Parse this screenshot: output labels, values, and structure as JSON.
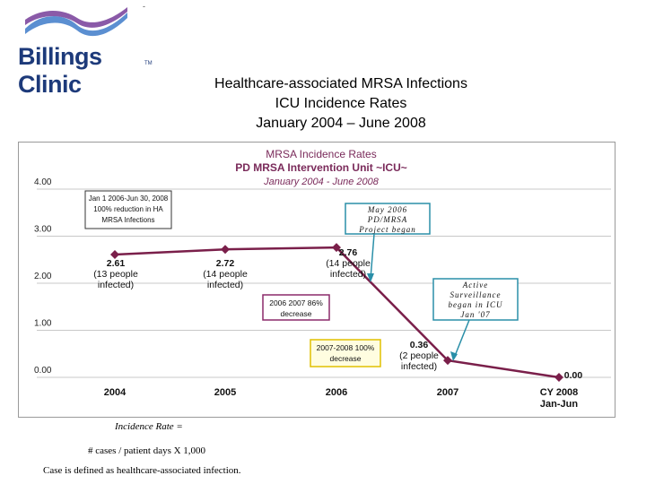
{
  "header": {
    "logo_text": "Billings Clinic",
    "logo_tm": "TM",
    "dash": "-"
  },
  "title": {
    "line1": "Healthcare-associated MRSA Infections",
    "line2": "ICU Incidence Rates",
    "line3": "January 2004 – June 2008"
  },
  "chart_data": {
    "type": "line",
    "title": "MRSA Incidence Rates",
    "subtitle": "PD MRSA Intervention Unit ~ICU~",
    "period": "January 2004 - June 2008",
    "categories": [
      "2004",
      "2005",
      "2006",
      "2007",
      "CY 2008 Jan-Jun"
    ],
    "category_lines": [
      [
        "2004"
      ],
      [
        "2005"
      ],
      [
        "2006"
      ],
      [
        "2007"
      ],
      [
        "CY 2008",
        "Jan-Jun"
      ]
    ],
    "values": [
      2.61,
      2.72,
      2.76,
      0.36,
      0.0
    ],
    "point_labels": [
      [
        "2.61",
        "(13 people",
        "infected)"
      ],
      [
        "2.72",
        "(14 people",
        "infected)"
      ],
      [
        "2.76",
        "(14 people",
        "infected)"
      ],
      [
        "0.36",
        "(2 people",
        "infected)"
      ],
      [
        "0.00"
      ]
    ],
    "y_ticks": [
      "0.00",
      "1.00",
      "2.00",
      "3.00",
      "4.00"
    ],
    "ylim": [
      0,
      4
    ],
    "series_color": "#7a1f4a",
    "annotations": {
      "box1": [
        "Jan 1 2006-Jun 30, 2008",
        "100% reduction in HA",
        "MRSA Infections"
      ],
      "box2": [
        "2006 2007 86%",
        "decrease"
      ],
      "box3": [
        "2007-2008 100%",
        "decrease"
      ],
      "callout1": [
        "May 2006",
        "PD/MRSA",
        "Project began"
      ],
      "callout2": [
        "Active",
        "Surveillance",
        "began in ICU",
        "Jan '07"
      ]
    }
  },
  "footnotes": {
    "formula_label": "Incidence Rate =",
    "formula": "# cases / patient days X 1,000",
    "definition": "Case is defined as healthcare-associated infection."
  }
}
